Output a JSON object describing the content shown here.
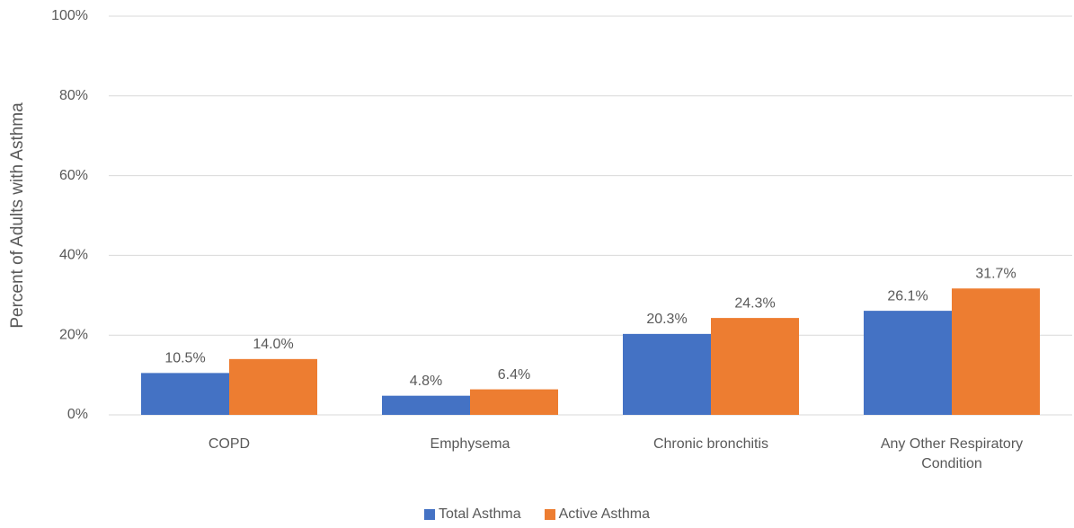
{
  "chart_data": {
    "type": "bar",
    "y_label": "Percent of Adults with Asthma",
    "categories": [
      "COPD",
      "Emphysema",
      "Chronic bronchitis",
      "Any Other Respiratory Condition"
    ],
    "series": [
      {
        "name": "Total Asthma",
        "color": "#4472c4",
        "values": [
          10.5,
          4.8,
          20.3,
          26.1
        ],
        "value_labels": [
          "10.5%",
          "4.8%",
          "20.3%",
          "26.1%"
        ]
      },
      {
        "name": "Active Asthma",
        "color": "#ed7d31",
        "values": [
          14.0,
          6.4,
          24.3,
          31.7
        ],
        "value_labels": [
          "14.0%",
          "6.4%",
          "24.3%",
          "31.7%"
        ]
      }
    ],
    "ylim": [
      0,
      100
    ],
    "yticks": [
      {
        "value": 0,
        "label": "0%"
      },
      {
        "value": 20,
        "label": "20%"
      },
      {
        "value": 40,
        "label": "40%"
      },
      {
        "value": 60,
        "label": "60%"
      },
      {
        "value": 80,
        "label": "80%"
      },
      {
        "value": 100,
        "label": "100%"
      }
    ],
    "grid": true,
    "legend": "bottom"
  }
}
